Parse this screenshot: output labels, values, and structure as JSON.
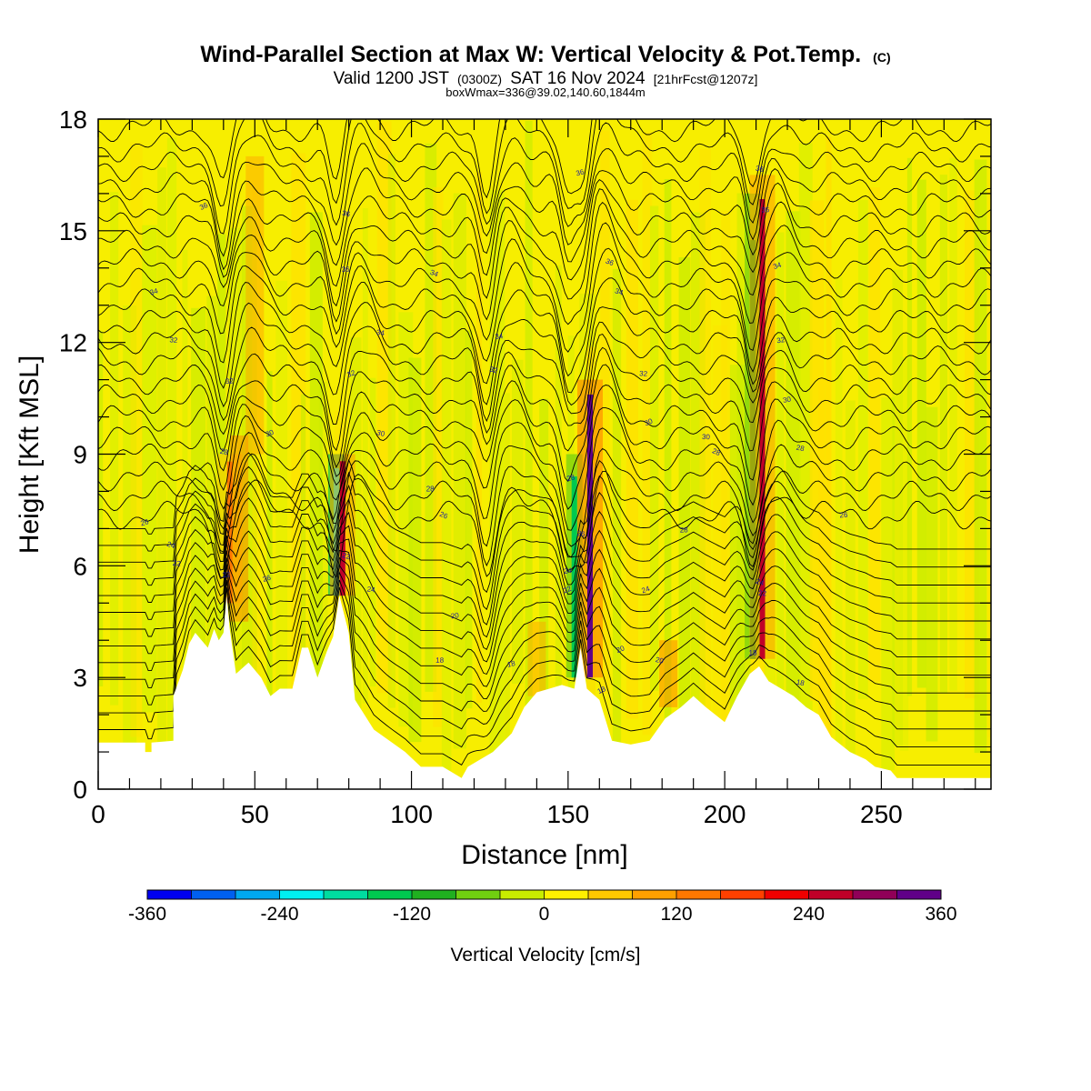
{
  "header": {
    "title": "Wind-Parallel Section at Max W: Vertical Velocity & Pot.Temp.",
    "title_mark": "(C)",
    "valid_prefix": "Valid 1200 JST",
    "valid_utc": "(0300Z)",
    "valid_date": "SAT 16 Nov 2024",
    "forecast_tag": "[21hrFcst@1207z]",
    "boxline": "boxWmax=336@39.02,140.60,1844m"
  },
  "chart_data": {
    "type": "heatmap",
    "xlabel": "Distance [nm]",
    "ylabel": "Height [Kft MSL]",
    "xlim": [
      0,
      285
    ],
    "ylim": [
      0,
      18
    ],
    "x_ticks": [
      0,
      50,
      100,
      150,
      200,
      250
    ],
    "y_ticks": [
      0,
      3,
      6,
      9,
      12,
      15,
      18
    ],
    "colorbar": {
      "label": "Vertical Velocity [cm/s]",
      "range": [
        -360,
        360
      ],
      "tick_values": [
        -360,
        -240,
        -120,
        0,
        120,
        240,
        360
      ],
      "tick_labels": [
        "-360",
        "-240",
        "-120",
        "0",
        "120",
        "240",
        "360"
      ],
      "colors": [
        "#0000f0",
        "#0060f0",
        "#00a8f0",
        "#00f0f0",
        "#00dca0",
        "#00c850",
        "#20b020",
        "#70d010",
        "#c8ec00",
        "#fff000",
        "#ffc800",
        "#ffa000",
        "#ff7800",
        "#ff4000",
        "#f00000",
        "#c00028",
        "#900058",
        "#600088"
      ]
    },
    "theta_labels": [
      "36",
      "36",
      "36",
      "36",
      "36",
      "36",
      "36",
      "34",
      "34",
      "34",
      "34",
      "34",
      "34",
      "32",
      "32",
      "32",
      "32",
      "32",
      "32",
      "30",
      "30",
      "30",
      "30",
      "30",
      "28",
      "28",
      "28",
      "28",
      "28",
      "28",
      "26",
      "26",
      "26",
      "26",
      "26",
      "24",
      "24",
      "24",
      "24",
      "24",
      "22",
      "22",
      "22",
      "22",
      "22",
      "20",
      "20",
      "20",
      "18",
      "18",
      "18",
      "18",
      "18"
    ],
    "terrain_profile": [
      [
        0,
        1.25
      ],
      [
        15,
        1.25
      ],
      [
        15,
        1.0
      ],
      [
        17,
        1.0
      ],
      [
        17,
        1.25
      ],
      [
        24,
        1.3
      ],
      [
        24,
        2.5
      ],
      [
        27,
        3.2
      ],
      [
        29,
        3.9
      ],
      [
        31,
        4.2
      ],
      [
        33,
        4.0
      ],
      [
        35,
        3.8
      ],
      [
        37,
        4.3
      ],
      [
        38.5,
        4.0
      ],
      [
        40,
        4.2
      ],
      [
        41,
        5.2
      ],
      [
        42,
        4.3
      ],
      [
        44,
        3.1
      ],
      [
        48,
        3.4
      ],
      [
        52,
        3.0
      ],
      [
        55,
        2.5
      ],
      [
        58,
        2.7
      ],
      [
        62,
        2.7
      ],
      [
        65,
        3.8
      ],
      [
        67,
        3.8
      ],
      [
        70,
        3.0
      ],
      [
        73,
        3.7
      ],
      [
        75,
        4.1
      ],
      [
        77,
        5.2
      ],
      [
        80,
        4.2
      ],
      [
        82,
        2.4
      ],
      [
        88,
        1.6
      ],
      [
        93,
        1.3
      ],
      [
        98,
        1.0
      ],
      [
        103,
        0.6
      ],
      [
        110,
        0.6
      ],
      [
        116,
        0.3
      ],
      [
        118,
        0.6
      ],
      [
        126,
        1.0
      ],
      [
        132,
        1.5
      ],
      [
        136,
        2.2
      ],
      [
        140,
        2.6
      ],
      [
        144,
        2.7
      ],
      [
        148,
        2.8
      ],
      [
        152,
        2.7
      ],
      [
        154,
        3.8
      ],
      [
        156,
        2.7
      ],
      [
        160,
        2.4
      ],
      [
        164,
        1.3
      ],
      [
        170,
        1.2
      ],
      [
        176,
        1.3
      ],
      [
        181,
        1.9
      ],
      [
        186,
        2.2
      ],
      [
        190,
        2.5
      ],
      [
        194,
        2.2
      ],
      [
        200,
        1.8
      ],
      [
        204,
        2.5
      ],
      [
        208,
        3.1
      ],
      [
        211,
        3.3
      ],
      [
        214,
        2.9
      ],
      [
        222,
        2.5
      ],
      [
        226,
        2.2
      ],
      [
        230,
        2.0
      ],
      [
        234,
        1.4
      ],
      [
        240,
        1.0
      ],
      [
        245,
        0.8
      ],
      [
        248,
        0.6
      ],
      [
        253,
        0.5
      ],
      [
        255,
        0.3
      ],
      [
        265,
        0.3
      ],
      [
        285,
        0.3
      ]
    ],
    "updrafts": [
      {
        "x": 42,
        "zbot": 5.0,
        "ztop": 9.0,
        "value": 150
      },
      {
        "x": 78,
        "zbot": 5.2,
        "ztop": 9.0,
        "value": 240
      },
      {
        "x": 157,
        "zbot": 3.0,
        "ztop": 11.0,
        "value": 336
      },
      {
        "x": 212,
        "zbot": 3.5,
        "ztop": 16.5,
        "value": 260
      }
    ],
    "downdrafts": [
      {
        "x": 76,
        "zbot": 5.2,
        "ztop": 9.0,
        "value": -240
      },
      {
        "x": 152,
        "zbot": 3.0,
        "ztop": 9.0,
        "value": -140
      },
      {
        "x": 209,
        "zbot": 3.5,
        "ztop": 16.0,
        "value": -120
      }
    ]
  }
}
